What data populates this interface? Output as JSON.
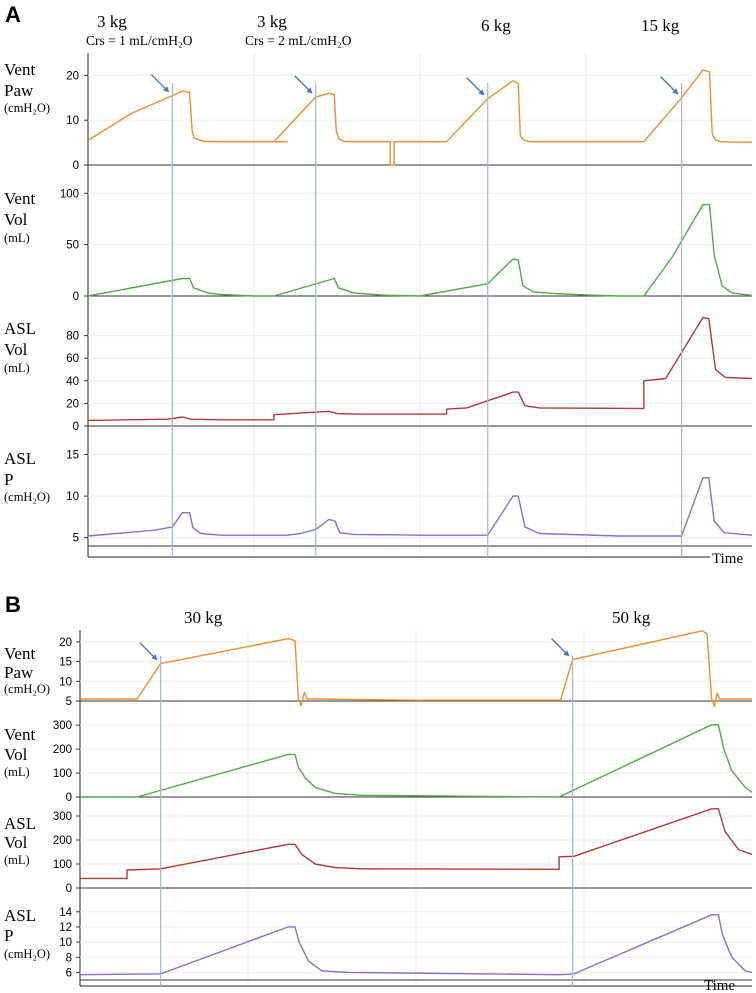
{
  "panel_a": {
    "letter": "A",
    "weights": [
      "3 kg",
      "3 kg",
      "6 kg",
      "15 kg"
    ],
    "compliance": [
      "Crs = 1 mL/cmH₂O",
      "Crs = 2 mL/cmH₂O"
    ],
    "time_label": "Time"
  },
  "panel_b": {
    "letter": "B",
    "weights": [
      "30 kg",
      "50 kg"
    ],
    "time_label": "Time"
  },
  "row_labels": {
    "vent_paw": [
      "Vent",
      "Paw",
      "(cmH₂O)"
    ],
    "vent_vol": [
      "Vent",
      "Vol",
      "(mL)"
    ],
    "asl_vol": [
      "ASL",
      "Vol",
      "(mL)"
    ],
    "asl_p": [
      "ASL",
      "P",
      "(cmH₂O)"
    ]
  },
  "colors": {
    "paw": "#e8902f",
    "vent_vol": "#55a84a",
    "asl_vol": "#b03a3a",
    "asl_p": "#8a6fc8",
    "marker_line": "#9fb4e0",
    "arrow": "#4a72c8"
  },
  "chart_data": [
    {
      "panel": "A",
      "type": "line",
      "title": "",
      "xlabel": "Time",
      "x_range": [
        0,
        100
      ],
      "breath_markers_x": [
        12.7,
        34.3,
        60.2,
        89.4
      ],
      "subplots": [
        {
          "name": "Vent Paw",
          "ylabel": "Vent Paw (cmH₂O)",
          "ylim": [
            0,
            25
          ],
          "yticks": [
            0,
            10,
            20
          ],
          "series": {
            "x": [
              0,
              6.5,
              12.7,
              14.2,
              15.3,
              15.7,
              16.0,
              17.3,
              20,
              30,
              28.0,
              34.3,
              36.3,
              37.1,
              37.4,
              37.8,
              38.7,
              42,
              45.5,
              45.5,
              46.1,
              46.1,
              49,
              54,
              60.2,
              64.0,
              64.8,
              65.1,
              65.6,
              66.6,
              70,
              80,
              83.7,
              89.4,
              92.6,
              93.6,
              94.0,
              94.4,
              95.3,
              98,
              100
            ],
            "y": [
              5.5,
              11.5,
              15.5,
              16.5,
              16.2,
              7.5,
              6.0,
              5.3,
              5.2,
              5.2,
              5.2,
              15.2,
              16.0,
              15.7,
              7.5,
              5.8,
              5.2,
              5.2,
              5.2,
              0,
              0,
              5.2,
              5.2,
              5.2,
              14.8,
              18.8,
              18.2,
              6.5,
              5.6,
              5.2,
              5.2,
              5.2,
              5.2,
              15.0,
              21.2,
              20.8,
              7.0,
              5.7,
              5.2,
              5.1,
              5.1
            ]
          },
          "arrows_x": [
            12.7,
            34.3,
            60.2,
            89.4
          ]
        },
        {
          "name": "Vent Vol",
          "ylabel": "Vent Vol (mL)",
          "ylim": [
            0,
            110
          ],
          "yticks": [
            0,
            50,
            100
          ],
          "series": {
            "x": [
              0,
              14.2,
              15.3,
              15.9,
              18,
              20,
              25,
              28.0,
              37.1,
              37.7,
              40,
              44,
              50,
              60.2,
              64.0,
              64.8,
              65.5,
              67,
              70,
              75,
              80,
              83.7,
              88,
              92.6,
              93.6,
              94.3,
              95.5,
              97,
              100
            ],
            "y": [
              0,
              17,
              17,
              8,
              3,
              1.5,
              0,
              0,
              17,
              8,
              3,
              1,
              0,
              12,
              36,
              35,
              10,
              4,
              2.5,
              1,
              0,
              0,
              38,
              89,
              89,
              40,
              10,
              3,
              0.5
            ]
          }
        },
        {
          "name": "ASL Vol",
          "ylabel": "ASL Vol (mL)",
          "ylim": [
            0,
            100
          ],
          "yticks": [
            0,
            20,
            40,
            60,
            80
          ],
          "series": {
            "x": [
              0,
              12,
              14.2,
              15.5,
              20,
              28.0,
              28.0,
              36.3,
              37.5,
              40,
              54,
              54,
              57,
              64.0,
              64.8,
              65.8,
              68,
              83.7,
              83.7,
              87,
              92.6,
              93.5,
              94.5,
              96,
              100
            ],
            "y": [
              5,
              6,
              8,
              6,
              5.5,
              5.5,
              10,
              13,
              11,
              10.5,
              10.5,
              15,
              16,
              30,
              30,
              18,
              16,
              15.5,
              40,
              42,
              96,
              95,
              50,
              43,
              42
            ]
          }
        },
        {
          "name": "ASL P",
          "ylabel": "ASL P (cmH₂O)",
          "ylim": [
            4,
            16.5
          ],
          "yticks": [
            5,
            10,
            15
          ],
          "series": {
            "x": [
              0,
              10,
              12.7,
              14.2,
              15.3,
              15.8,
              17,
              20,
              30,
              32,
              34.3,
              36.3,
              37.2,
              37.9,
              40,
              50,
              58,
              60.2,
              64.0,
              64.8,
              65.8,
              68,
              80,
              89.4,
              92.6,
              93.5,
              94.3,
              95.8,
              100
            ],
            "y": [
              5.2,
              5.9,
              6.3,
              8.0,
              8.0,
              6.2,
              5.5,
              5.3,
              5.3,
              5.5,
              6.0,
              7.2,
              7.0,
              5.6,
              5.4,
              5.3,
              5.3,
              5.3,
              10.0,
              10.0,
              6.3,
              5.5,
              5.2,
              5.2,
              12.2,
              12.2,
              7.0,
              5.6,
              5.3
            ]
          }
        }
      ]
    },
    {
      "panel": "B",
      "type": "line",
      "title": "",
      "xlabel": "Time",
      "x_range": [
        0,
        100
      ],
      "breath_markers_x": [
        12,
        73.3
      ],
      "subplots": [
        {
          "name": "Vent Paw",
          "ylabel": "Vent Paw (cmH₂O)",
          "ylim": [
            5,
            22
          ],
          "yticks": [
            5,
            10,
            15,
            20
          ],
          "series": {
            "x": [
              0,
              8.5,
              12,
              31.0,
              32.0,
              32.5,
              32.9,
              33.4,
              33.8,
              35,
              50,
              71.5,
              73.3,
              92.6,
              93.3,
              94.0,
              94.4,
              94.8,
              95.2,
              96,
              100
            ],
            "y": [
              5.5,
              5.5,
              14.5,
              20.8,
              20.3,
              5.5,
              3.8,
              7.2,
              5.5,
              5.5,
              5.2,
              5.2,
              15.5,
              22.8,
              22.0,
              5.5,
              3.6,
              7.0,
              5.5,
              5.5,
              5.5
            ]
          },
          "arrows_x": [
            12,
            73.3
          ]
        },
        {
          "name": "Vent Vol",
          "ylabel": "Vent Vol (mL)",
          "ylim": [
            0,
            330
          ],
          "yticks": [
            0,
            100,
            200,
            300
          ],
          "series": {
            "x": [
              0,
              8.5,
              31.0,
              32.0,
              32.5,
              33.5,
              35,
              38,
              42,
              50,
              71.3,
              94.0,
              95.0,
              95.8,
              97,
              99,
              100
            ],
            "y": [
              0,
              0,
              178,
              178,
              125,
              80,
              40,
              15,
              7,
              5,
              0,
              302,
              302,
              200,
              110,
              40,
              20
            ]
          }
        },
        {
          "name": "ASL Vol",
          "ylabel": "ASL Vol (mL)",
          "ylim": [
            0,
            350
          ],
          "yticks": [
            0,
            100,
            200,
            300
          ],
          "series": {
            "x": [
              0,
              7,
              7,
              12,
              31.0,
              32.0,
              33,
              35,
              38,
              42,
              71.3,
              71.3,
              73.5,
              94.0,
              95.0,
              96,
              98,
              100
            ],
            "y": [
              40,
              40,
              75,
              80,
              182,
              182,
              140,
              100,
              85,
              80,
              78,
              130,
              132,
              330,
              330,
              235,
              160,
              140
            ]
          }
        },
        {
          "name": "ASL P",
          "ylabel": "ASL P (cmH₂O)",
          "ylim": [
            5,
            14.5
          ],
          "yticks": [
            6,
            8,
            10,
            12,
            14
          ],
          "series": {
            "x": [
              0,
              12,
              31.0,
              32.0,
              32.6,
              34,
              36,
              40,
              71.5,
              73.5,
              94.0,
              95.0,
              95.6,
              97,
              99,
              100
            ],
            "y": [
              5.7,
              5.8,
              12.0,
              12.0,
              10.0,
              7.5,
              6.2,
              6.0,
              5.7,
              5.8,
              13.6,
              13.6,
              11.0,
              8.0,
              6.2,
              6.0
            ]
          }
        }
      ]
    }
  ]
}
